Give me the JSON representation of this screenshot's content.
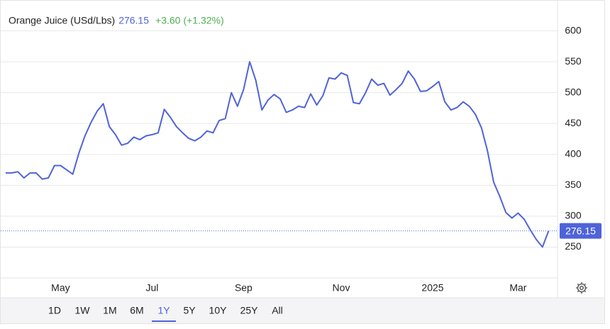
{
  "chart_data": {
    "type": "line",
    "title": "Orange Juice (USd/Lbs)",
    "last": 276.15,
    "change": {
      "value": 3.6,
      "label": "+3.60"
    },
    "change_pct": {
      "value": 1.32,
      "label": "(+1.32%)"
    },
    "categories": [
      null,
      null,
      null,
      null,
      null,
      null,
      null,
      null,
      null,
      "May",
      null,
      null,
      null,
      null,
      null,
      null,
      null,
      null,
      null,
      null,
      null,
      null,
      null,
      null,
      "Jul",
      null,
      null,
      null,
      null,
      null,
      null,
      null,
      null,
      null,
      null,
      null,
      null,
      null,
      null,
      "Sep",
      null,
      null,
      null,
      null,
      null,
      null,
      null,
      null,
      null,
      null,
      null,
      null,
      null,
      null,
      null,
      "Nov",
      null,
      null,
      null,
      null,
      null,
      null,
      null,
      null,
      null,
      null,
      null,
      null,
      null,
      null,
      "2025",
      null,
      null,
      null,
      null,
      null,
      null,
      null,
      null,
      null,
      null,
      null,
      null,
      null,
      "Mar",
      null,
      null,
      null,
      null,
      null
    ],
    "series": [
      {
        "name": "Orange Juice",
        "color": "#4f63d9",
        "values": [
          370,
          370,
          372,
          362,
          370,
          370,
          360,
          362,
          382,
          382,
          375,
          368,
          402,
          430,
          452,
          470,
          482,
          445,
          432,
          415,
          418,
          428,
          424,
          430,
          432,
          435,
          473,
          460,
          445,
          435,
          426,
          422,
          428,
          438,
          435,
          455,
          458,
          500,
          478,
          505,
          550,
          520,
          472,
          488,
          497,
          490,
          468,
          472,
          478,
          476,
          498,
          480,
          495,
          524,
          522,
          532,
          528,
          484,
          482,
          500,
          522,
          512,
          515,
          496,
          505,
          515,
          535,
          522,
          502,
          503,
          510,
          518,
          485,
          472,
          476,
          485,
          478,
          465,
          443,
          405,
          355,
          332,
          306,
          297,
          305,
          295,
          278,
          262,
          250,
          276.15
        ]
      }
    ],
    "ylim": [
      200,
      650
    ],
    "yticks": [
      250,
      300,
      350,
      400,
      450,
      500,
      550,
      600
    ],
    "grid": true,
    "ranges": [
      "1D",
      "1W",
      "1M",
      "6M",
      "1Y",
      "5Y",
      "10Y",
      "25Y",
      "All"
    ],
    "selected_range": "1Y"
  }
}
